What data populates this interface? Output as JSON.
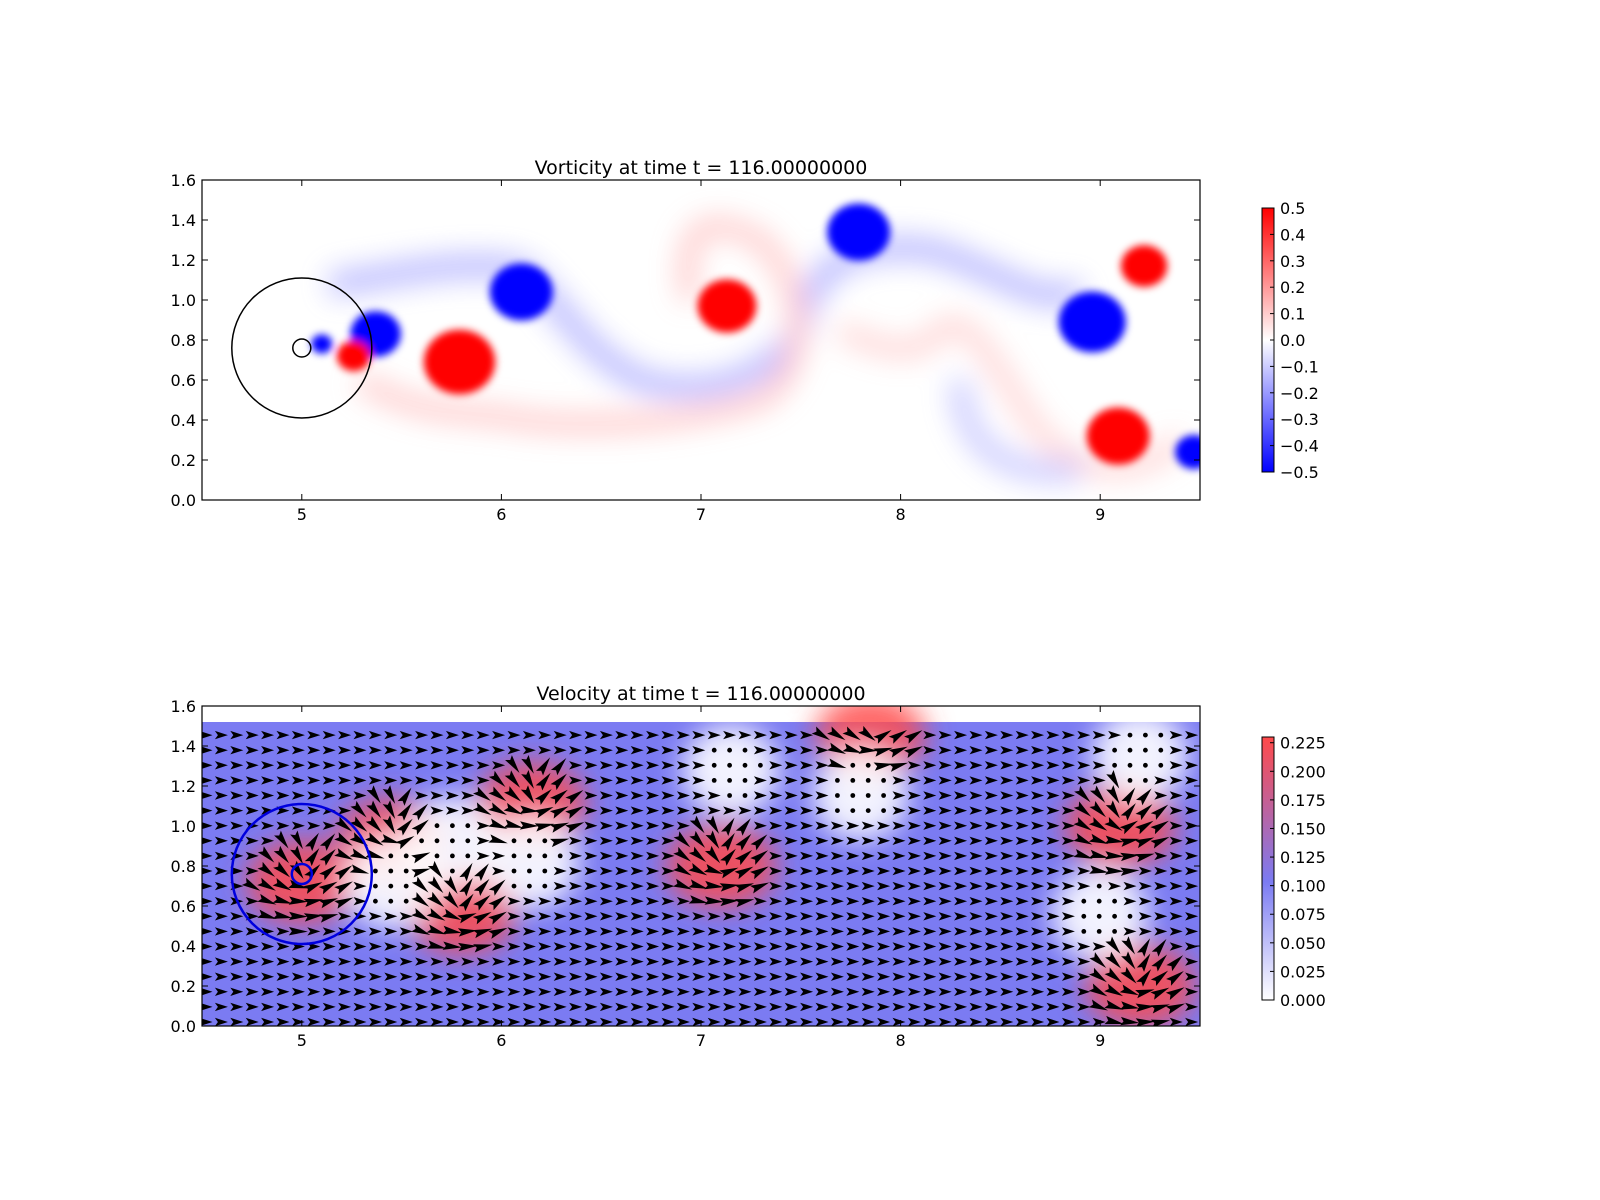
{
  "chart_data": [
    {
      "type": "heatmap",
      "title": "Vorticity at time t =   116.00000000",
      "xlim": [
        4.5,
        9.5
      ],
      "ylim": [
        0.0,
        1.6
      ],
      "xticks": [
        "5",
        "6",
        "7",
        "8",
        "9"
      ],
      "yticks": [
        "0.0",
        "0.2",
        "0.4",
        "0.6",
        "0.8",
        "1.0",
        "1.2",
        "1.4",
        "1.6"
      ],
      "colorbar": {
        "min": -0.5,
        "max": 0.5,
        "ticks": [
          "0.5",
          "0.4",
          "0.3",
          "0.2",
          "0.1",
          "0.0",
          "−0.1",
          "−0.2",
          "−0.3",
          "−0.4",
          "−0.5"
        ],
        "colors": [
          "#0000ff",
          "#ffffff",
          "#ff0000"
        ]
      },
      "vortices": [
        {
          "x": 5.1,
          "y": 0.78,
          "sign": "negative",
          "r": 0.05
        },
        {
          "x": 5.37,
          "y": 0.83,
          "sign": "negative",
          "r": 0.12
        },
        {
          "x": 5.26,
          "y": 0.72,
          "sign": "positive",
          "r": 0.08
        },
        {
          "x": 5.79,
          "y": 0.69,
          "sign": "positive",
          "r": 0.17
        },
        {
          "x": 6.1,
          "y": 1.04,
          "sign": "negative",
          "r": 0.15
        },
        {
          "x": 7.13,
          "y": 0.97,
          "sign": "positive",
          "r": 0.14
        },
        {
          "x": 7.79,
          "y": 1.34,
          "sign": "negative",
          "r": 0.15
        },
        {
          "x": 8.96,
          "y": 0.89,
          "sign": "negative",
          "r": 0.16
        },
        {
          "x": 9.22,
          "y": 1.17,
          "sign": "positive",
          "r": 0.11
        },
        {
          "x": 9.09,
          "y": 0.32,
          "sign": "positive",
          "r": 0.15
        },
        {
          "x": 9.47,
          "y": 0.24,
          "sign": "negative",
          "r": 0.09
        }
      ],
      "circles": [
        {
          "x": 5.0,
          "y": 0.76,
          "r": 0.35,
          "color": "#000000"
        },
        {
          "x": 5.0,
          "y": 0.76,
          "r": 0.045,
          "color": "#000000"
        }
      ]
    },
    {
      "type": "heatmap",
      "title": "Velocity at time t =   116.00000000",
      "xlim": [
        4.5,
        9.5
      ],
      "ylim": [
        0.0,
        1.6
      ],
      "xticks": [
        "5",
        "6",
        "7",
        "8",
        "9"
      ],
      "yticks": [
        "0.0",
        "0.2",
        "0.4",
        "0.6",
        "0.8",
        "1.0",
        "1.2",
        "1.4",
        "1.6"
      ],
      "colorbar": {
        "min": 0.0,
        "max": 0.23,
        "ticks": [
          "0.225",
          "0.200",
          "0.175",
          "0.150",
          "0.125",
          "0.100",
          "0.075",
          "0.050",
          "0.025",
          "0.000"
        ],
        "colors": [
          "#ffffff",
          "#7b7bf2",
          "#ff4a4a"
        ]
      },
      "field_top": 1.52,
      "background_speed": 0.1,
      "fast_regions": [
        {
          "x": 6.15,
          "y": 1.11,
          "speed": 0.225
        },
        {
          "x": 5.8,
          "y": 0.57,
          "speed": 0.225
        },
        {
          "x": 5.0,
          "y": 0.72,
          "speed": 0.18
        },
        {
          "x": 5.45,
          "y": 0.93,
          "speed": 0.17
        },
        {
          "x": 7.1,
          "y": 0.8,
          "speed": 0.225
        },
        {
          "x": 7.85,
          "y": 1.45,
          "speed": 0.225
        },
        {
          "x": 9.1,
          "y": 1.0,
          "speed": 0.225
        },
        {
          "x": 9.2,
          "y": 0.2,
          "speed": 0.225
        }
      ],
      "slow_regions": [
        {
          "x": 5.45,
          "y": 0.72,
          "speed": 0.01
        },
        {
          "x": 5.75,
          "y": 0.92,
          "speed": 0.01
        },
        {
          "x": 6.15,
          "y": 0.82,
          "speed": 0.01
        },
        {
          "x": 7.15,
          "y": 1.28,
          "speed": 0.02
        },
        {
          "x": 7.8,
          "y": 1.16,
          "speed": 0.02
        },
        {
          "x": 9.0,
          "y": 0.56,
          "speed": 0.01
        },
        {
          "x": 9.2,
          "y": 1.35,
          "speed": 0.03
        }
      ],
      "circles": [
        {
          "x": 5.0,
          "y": 0.76,
          "r": 0.35,
          "color": "#0000dd"
        },
        {
          "x": 5.0,
          "y": 0.76,
          "r": 0.05,
          "color": "#0000dd"
        }
      ]
    }
  ]
}
